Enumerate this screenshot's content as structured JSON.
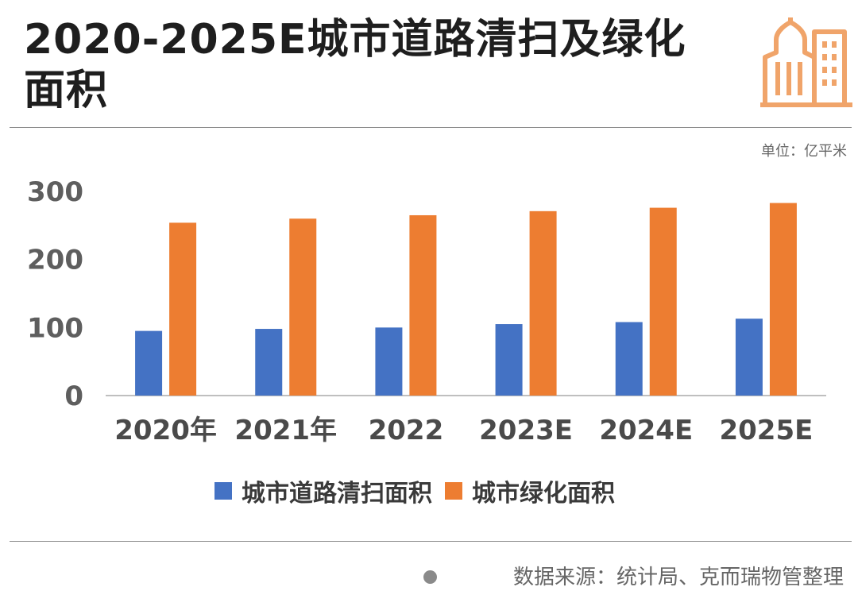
{
  "header": {
    "title": "2020-2025E城市道路清扫及绿化面积",
    "logo_icon": "city-buildings-icon"
  },
  "unit_label": "单位：亿平米",
  "source_label": "数据来源：统计局、克而瑞物管整理",
  "colors": {
    "series1": "#4472C4",
    "series2": "#ED7D31",
    "axis": "#bfbfbf",
    "logo": "#F0A46A"
  },
  "chart_data": {
    "type": "bar",
    "categories": [
      "2020年",
      "2021年",
      "2022",
      "2023E",
      "2024E",
      "2025E"
    ],
    "series": [
      {
        "name": "城市道路清扫面积",
        "values": [
          95,
          98,
          100,
          105,
          108,
          113
        ]
      },
      {
        "name": "城市绿化面积",
        "values": [
          254,
          260,
          265,
          271,
          276,
          283
        ]
      }
    ],
    "ylim": [
      0,
      300
    ],
    "yticks": [
      0,
      100,
      200,
      300
    ],
    "grid": false,
    "legend": "bottom"
  }
}
